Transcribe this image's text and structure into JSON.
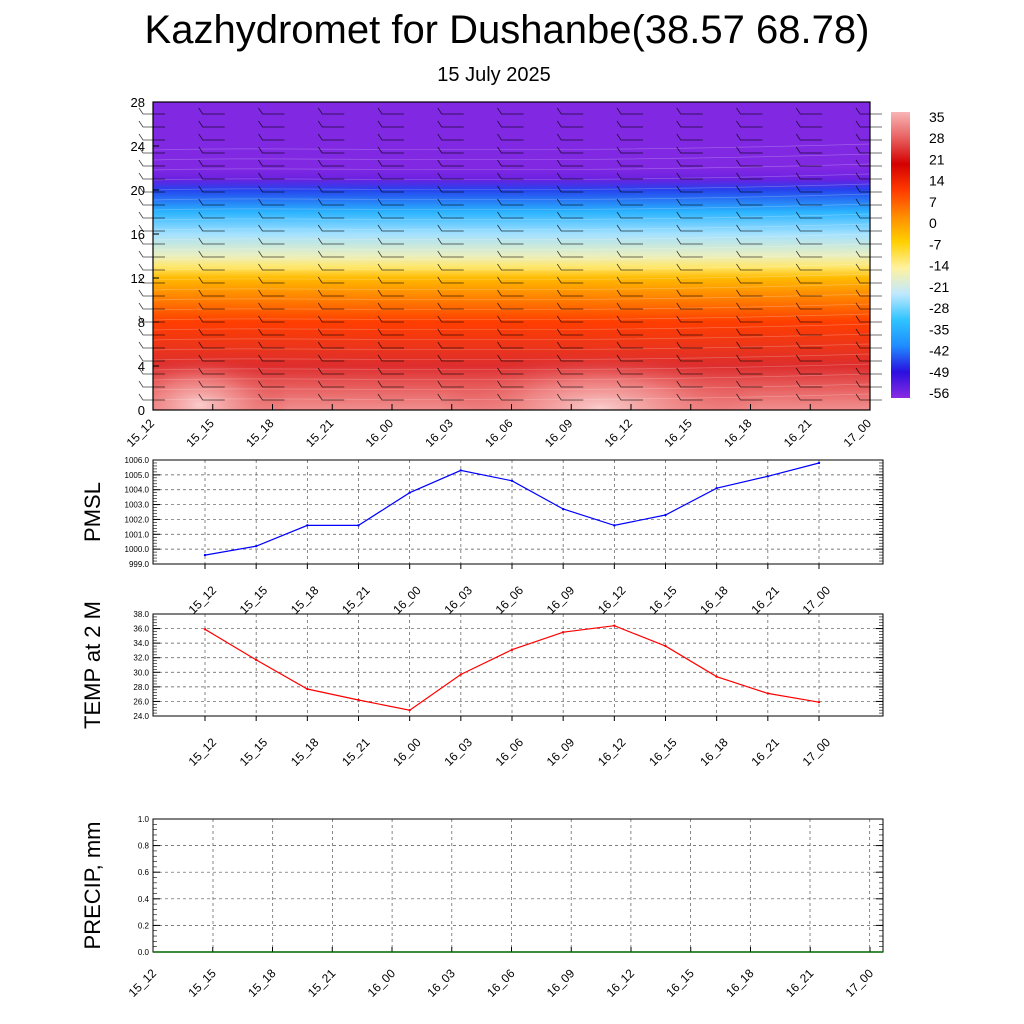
{
  "title": "Kazhydromet for Dushanbe(38.57 68.78)",
  "subtitle": "15 July 2025",
  "time_labels": [
    "15_12",
    "15_15",
    "15_18",
    "15_21",
    "16_00",
    "16_03",
    "16_06",
    "16_09",
    "16_12",
    "16_15",
    "16_18",
    "16_21",
    "17_00"
  ],
  "chart_data": [
    {
      "type": "heatmap",
      "name": "cross-section",
      "x": [
        "15_12",
        "15_15",
        "15_18",
        "15_21",
        "16_00",
        "16_03",
        "16_06",
        "16_09",
        "16_12",
        "16_15",
        "16_18",
        "16_21",
        "17_00"
      ],
      "yticks": [
        0,
        4,
        8,
        12,
        16,
        20,
        24,
        28
      ],
      "ylim": [
        0,
        28
      ],
      "colorbar_labels": [
        "35",
        "28",
        "21",
        "14",
        "7",
        "0",
        "-7",
        "-14",
        "-21",
        "-28",
        "-35",
        "-42",
        "-49",
        "-56"
      ],
      "colorbar_range": [
        -63,
        38
      ],
      "colorbar_colors": [
        "#8a2be2",
        "#2a0fe0",
        "#1f8cff",
        "#2ec4ff",
        "#bfe8ff",
        "#fff2a0",
        "#ffd000",
        "#ff8c00",
        "#ff3a00",
        "#d40000",
        "#e86060",
        "#f8b5b5"
      ],
      "profile_levels": [
        0,
        4,
        8,
        12,
        13,
        14,
        16,
        18,
        20,
        21,
        22,
        28
      ],
      "profile_values": [
        34,
        24,
        10,
        -5,
        -14,
        -20,
        -28,
        -38,
        -50,
        -60,
        -62,
        -62
      ]
    },
    {
      "type": "line",
      "name": "pmsl",
      "ylabel": "PMSL",
      "ylim": [
        999.0,
        1006.0
      ],
      "yticks": [
        "999.0",
        "1000.0",
        "1001.0",
        "1002.0",
        "1003.0",
        "1004.0",
        "1005.0",
        "1006.0"
      ],
      "categories": [
        "15_12",
        "15_15",
        "15_18",
        "15_21",
        "16_00",
        "16_03",
        "16_06",
        "16_09",
        "16_12",
        "16_15",
        "16_18",
        "16_21",
        "17_00"
      ],
      "values": [
        999.6,
        1000.2,
        1001.6,
        1001.6,
        1003.8,
        1005.3,
        1004.6,
        1002.7,
        1001.6,
        1002.3,
        1004.1,
        1004.9,
        1005.8
      ],
      "color": "#0000ff"
    },
    {
      "type": "line",
      "name": "temp",
      "ylabel": "TEMP at 2 M",
      "ylim": [
        24.0,
        38.0
      ],
      "yticks": [
        "24.0",
        "26.0",
        "28.0",
        "30.0",
        "32.0",
        "34.0",
        "36.0",
        "38.0"
      ],
      "categories": [
        "15_12",
        "15_15",
        "15_18",
        "15_21",
        "16_00",
        "16_03",
        "16_06",
        "16_09",
        "16_12",
        "16_15",
        "16_18",
        "16_21",
        "17_00"
      ],
      "values": [
        35.9,
        31.7,
        27.7,
        26.2,
        24.8,
        29.7,
        33.1,
        35.5,
        36.4,
        33.6,
        29.4,
        27.1,
        25.9
      ],
      "color": "#ff0000"
    },
    {
      "type": "line",
      "name": "precip",
      "ylabel": "PRECIP, mm",
      "ylim": [
        0.0,
        1.0
      ],
      "yticks": [
        "0.0",
        "0.2",
        "0.4",
        "0.6",
        "0.8",
        "1.0"
      ],
      "categories": [
        "15_12",
        "15_15",
        "15_18",
        "15_21",
        "16_00",
        "16_03",
        "16_06",
        "16_09",
        "16_12",
        "16_15",
        "16_18",
        "16_21",
        "17_00"
      ],
      "values": [
        0,
        0,
        0,
        0,
        0,
        0,
        0,
        0,
        0,
        0,
        0,
        0,
        0
      ],
      "color": "#006400"
    }
  ]
}
